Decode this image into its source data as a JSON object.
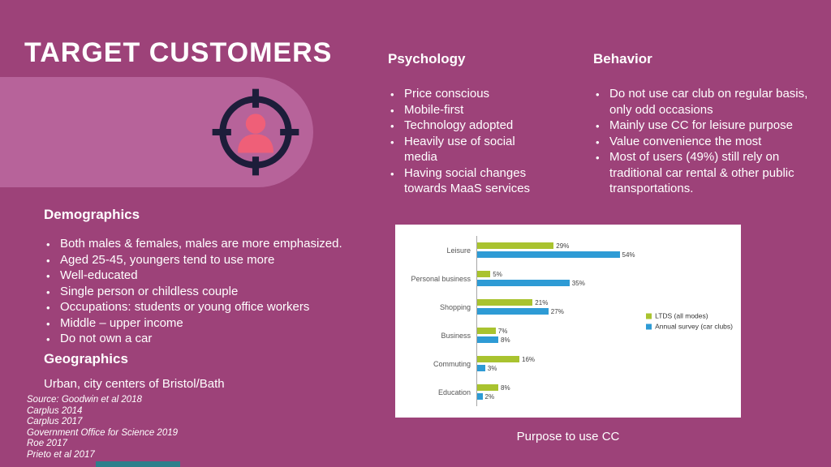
{
  "slide": {
    "title": "TARGET CUSTOMERS",
    "caption": "Purpose to use CC"
  },
  "psychology": {
    "heading": "Psychology",
    "bullets": [
      "Price conscious",
      "Mobile-first",
      "Technology adopted",
      "Heavily use of social media",
      "Having social changes towards MaaS services"
    ]
  },
  "behavior": {
    "heading": "Behavior",
    "bullets": [
      "Do not use car club on regular basis, only odd occasions",
      "Mainly use CC for leisure purpose",
      "Value convenience the most",
      "Most of users (49%) still rely on traditional car rental & other public transportations."
    ]
  },
  "demographics": {
    "heading": "Demographics",
    "bullets": [
      "Both males & females, males are more emphasized.",
      "Aged 25-45, youngers tend to use more",
      "Well-educated",
      "Single person or childless couple",
      "Occupations: students or young office workers",
      "Middle – upper income",
      "Do not own a car"
    ]
  },
  "geographics": {
    "heading": "Geographics",
    "text": "Urban, city centers of Bristol/Bath"
  },
  "sources": [
    "Source: Goodwin et al 2018",
    "Carplus 2014",
    "Carplus 2017",
    "Government Office for Science 2019",
    "Roe 2017",
    "Prieto et al 2017"
  ],
  "chart_data": {
    "type": "bar",
    "orientation": "horizontal",
    "title": "",
    "xlabel": "",
    "ylabel": "",
    "categories": [
      "Leisure",
      "Personal business",
      "Shopping",
      "Business",
      "Commuting",
      "Education"
    ],
    "series": [
      {
        "name": "LTDS (all modes)",
        "color": "#a9c32f",
        "values": [
          29,
          5,
          21,
          7,
          16,
          8
        ]
      },
      {
        "name": "Annual survey (car clubs)",
        "color": "#2e9bd5",
        "values": [
          54,
          35,
          27,
          8,
          3,
          2
        ]
      }
    ],
    "value_suffix": "%",
    "xlim": [
      0,
      60
    ],
    "grid": false,
    "legend_position": "right"
  },
  "colors": {
    "background": "#9d4279",
    "pill": "#b7639a",
    "icon_dark": "#1d1d3a",
    "icon_person": "#ef5f78",
    "accent_teal": "#2c7f8b",
    "series_green": "#a9c32f",
    "series_blue": "#2e9bd5"
  }
}
